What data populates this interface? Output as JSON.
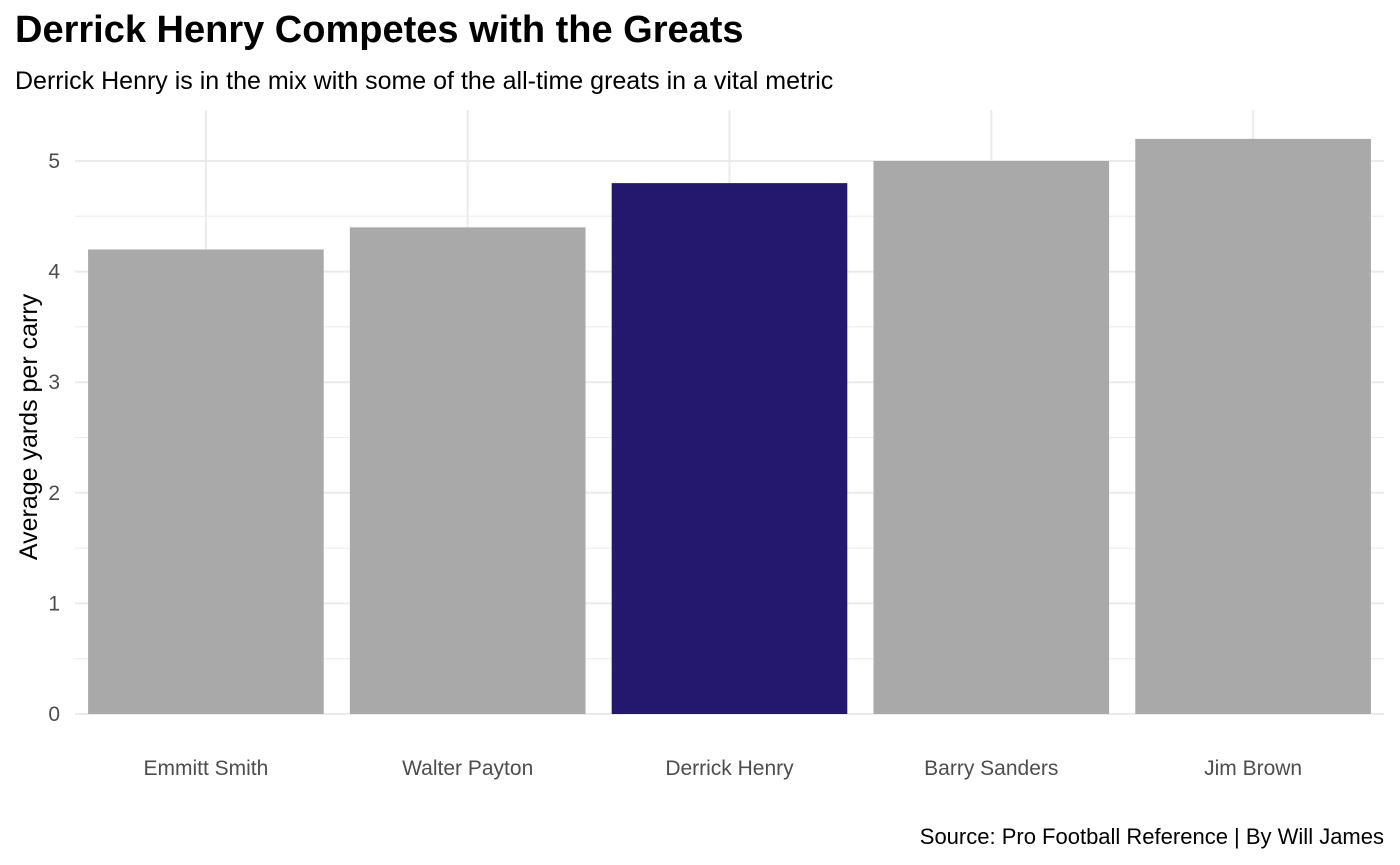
{
  "chart_data": {
    "type": "bar",
    "title": "Derrick Henry Competes with the Greats",
    "subtitle": "Derrick Henry is in the mix with some of the all-time greats in a vital metric",
    "caption": "Source: Pro Football Reference | By Will James",
    "xlabel": "",
    "ylabel": "Average yards per carry",
    "categories": [
      "Emmitt Smith",
      "Walter Payton",
      "Derrick Henry",
      "Barry Sanders",
      "Jim Brown"
    ],
    "values": [
      4.2,
      4.4,
      4.8,
      5.0,
      5.2
    ],
    "highlight": "Derrick Henry",
    "colors": {
      "default": "#a9a9a9",
      "highlight": "#23176e",
      "grid": "#ebebeb"
    },
    "ylim": [
      0,
      5.4
    ],
    "yticks": [
      0,
      1,
      2,
      3,
      4,
      5
    ],
    "grid": true,
    "legend": "none"
  }
}
